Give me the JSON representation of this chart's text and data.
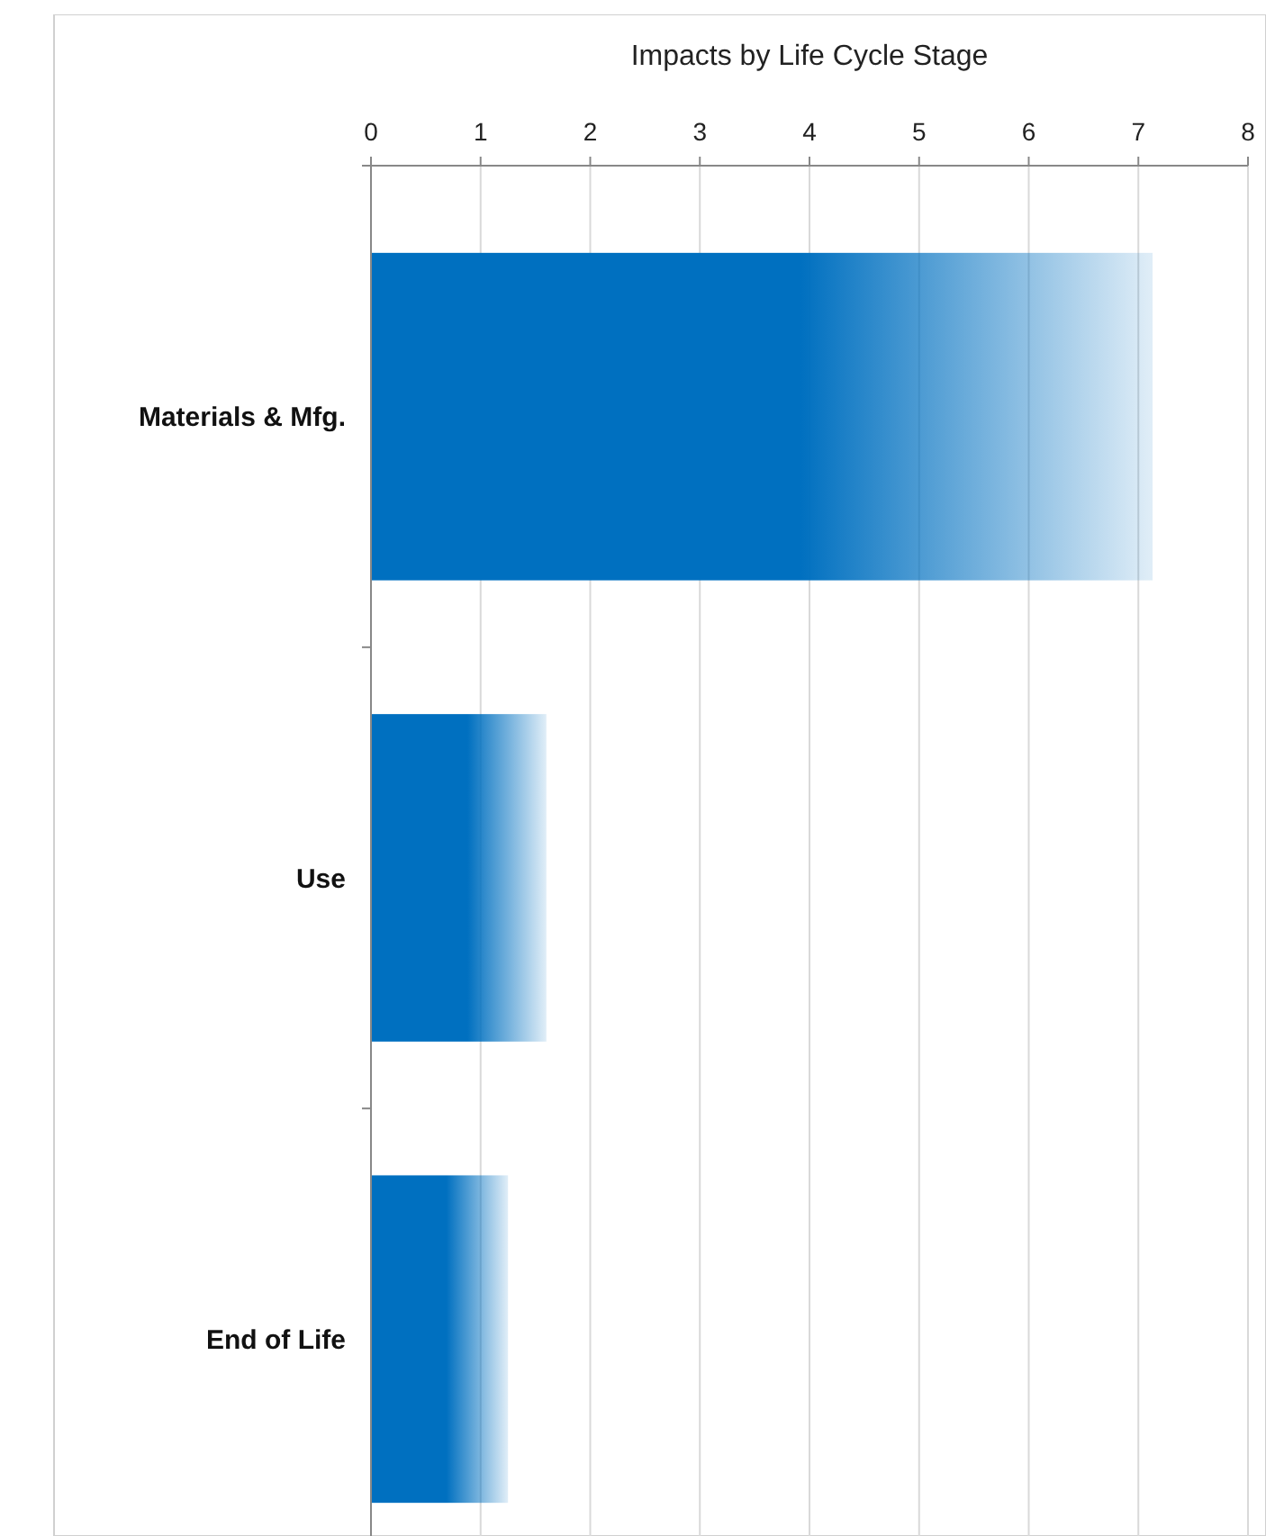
{
  "chart_data": {
    "type": "bar",
    "orientation": "horizontal",
    "title": "Impacts by Life Cycle Stage",
    "categories": [
      "Materials & Mfg.",
      "Use",
      "End of Life"
    ],
    "values": [
      7.13,
      1.6,
      1.25
    ],
    "color": "#0070c0",
    "xlim": [
      0,
      8
    ],
    "xticks": [
      0,
      1,
      2,
      3,
      4,
      5,
      6,
      7,
      8
    ],
    "grid": "x"
  }
}
